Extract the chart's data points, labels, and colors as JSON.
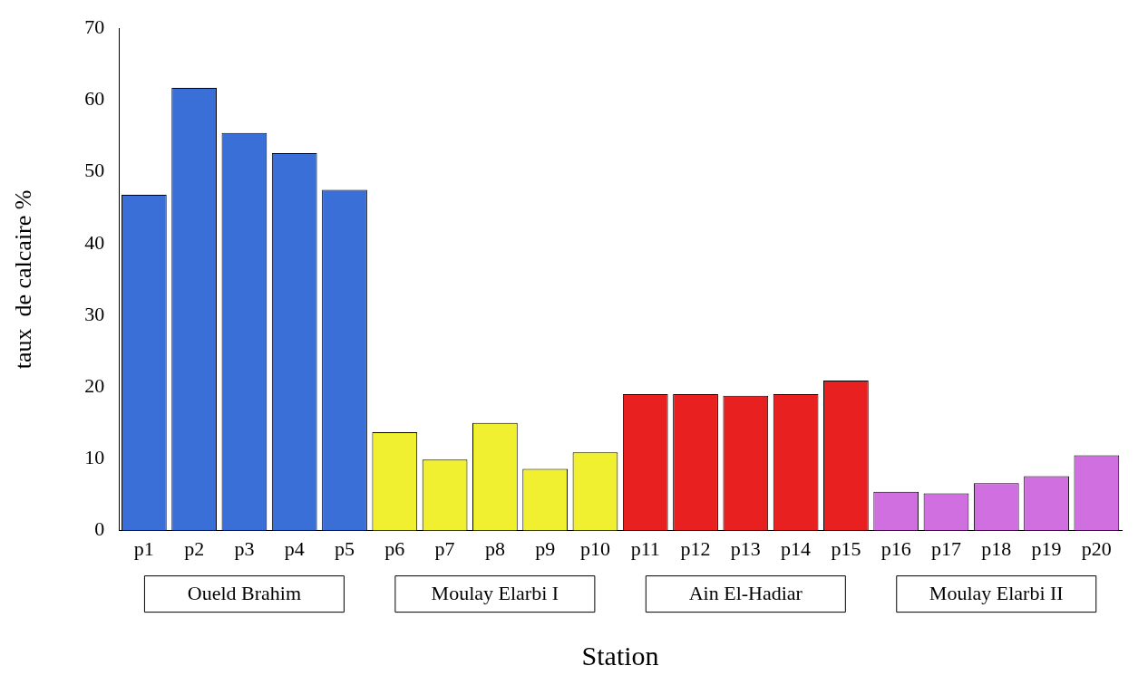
{
  "chart_data": {
    "type": "bar",
    "xlabel": "Station",
    "ylabel": "taux  de calcaire %",
    "categories": [
      "p1",
      "p2",
      "p3",
      "p4",
      "p5",
      "p6",
      "p7",
      "p8",
      "p9",
      "p10",
      "p11",
      "p12",
      "p13",
      "p14",
      "p15",
      "p16",
      "p17",
      "p18",
      "p19",
      "p20"
    ],
    "values": [
      46.8,
      61.7,
      55.4,
      52.6,
      47.5,
      13.7,
      9.9,
      15,
      8.6,
      10.9,
      19,
      19,
      18.8,
      19,
      20.9,
      5.4,
      5.2,
      6.6,
      7.6,
      10.5
    ],
    "colors": [
      "#3a6fd8",
      "#3a6fd8",
      "#3a6fd8",
      "#3a6fd8",
      "#3a6fd8",
      "#f0f030",
      "#f0f030",
      "#f0f030",
      "#f0f030",
      "#f0f030",
      "#e82020",
      "#e82020",
      "#e82020",
      "#e82020",
      "#e82020",
      "#d070e0",
      "#d070e0",
      "#d070e0",
      "#d070e0",
      "#d070e0"
    ],
    "ylim": [
      0,
      70
    ],
    "yticks": [
      0,
      10,
      20,
      30,
      40,
      50,
      60,
      70
    ],
    "grid": false,
    "annotations": [
      "Oueld Brahim",
      "Moulay Elarbi I",
      "Ain El-Hadiar",
      "Moulay Elarbi II"
    ]
  }
}
